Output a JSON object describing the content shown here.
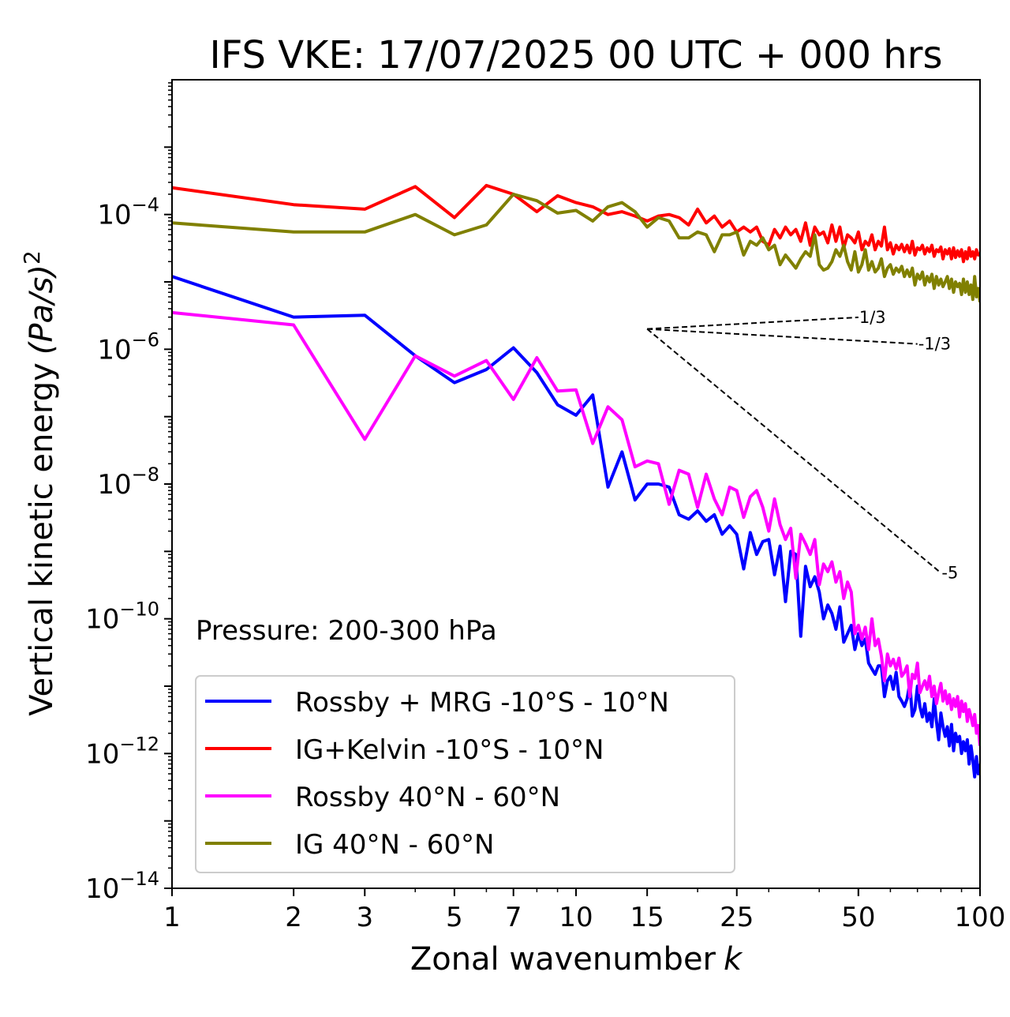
{
  "chart_data": {
    "type": "line",
    "title": "IFS VKE: 17/07/2025 00 UTC + 000 hrs",
    "xlabel": "Zonal wavenumber",
    "xlabel_var": "k",
    "ylabel": "Vertical kinetic energy",
    "ylabel_unit": "(Pa/s)",
    "ylabel_exp": "2",
    "xscale": "log",
    "yscale": "log",
    "xlim": [
      1,
      100
    ],
    "ylim": [
      1e-14,
      0.01
    ],
    "x_ticks": [
      1,
      2,
      3,
      5,
      7,
      10,
      15,
      25,
      50,
      100
    ],
    "x_tick_labels": [
      "1",
      "2",
      "3",
      "5",
      "7",
      "10",
      "15",
      "25",
      "50",
      "100"
    ],
    "y_ticks": [
      -14,
      -12,
      -10,
      -8,
      -6,
      -4
    ],
    "y_tick_labels": [
      "10",
      "10",
      "10",
      "10",
      "10",
      "10"
    ],
    "y_tick_exponents": [
      "−14",
      "−12",
      "−10",
      "−8",
      "−6",
      "−4"
    ],
    "annotation": "Pressure: 200-300 hPa",
    "legend_position": "lower-left",
    "reference_lines": [
      {
        "label": "1/3",
        "slope": 0.3333,
        "x": [
          15,
          50
        ],
        "y": [
          2e-06,
          2.98e-06
        ]
      },
      {
        "label": "-1/3",
        "slope": -0.3333,
        "x": [
          15,
          70
        ],
        "y": [
          2e-06,
          1.2e-06
        ]
      },
      {
        "label": "-5",
        "slope": -5,
        "x": [
          15,
          80
        ],
        "y": [
          2e-06,
          4.8e-10
        ]
      }
    ],
    "series": [
      {
        "name": "Rossby + MRG -10°S - 10°N",
        "color": "#0000ff",
        "x": [
          1,
          2,
          3,
          4,
          5,
          6,
          7,
          8,
          9,
          10,
          11,
          12,
          13,
          14,
          15,
          16,
          17,
          18,
          19,
          20,
          21,
          22,
          23,
          24,
          25,
          26,
          27,
          28,
          29,
          30,
          31,
          32,
          33,
          34,
          35,
          36,
          37,
          38,
          39,
          40,
          41,
          42,
          43,
          44,
          45,
          46,
          47,
          48,
          49,
          50,
          51,
          52,
          53,
          54,
          55,
          56,
          57,
          58,
          59,
          60,
          61,
          62,
          63,
          64,
          65,
          66,
          67,
          68,
          69,
          70,
          71,
          72,
          73,
          74,
          75,
          76,
          77,
          78,
          79,
          80,
          81,
          82,
          83,
          84,
          85,
          86,
          87,
          88,
          89,
          90,
          91,
          92,
          93,
          94,
          95,
          96,
          97,
          98,
          99,
          100
        ],
        "y": [
          1.2e-05,
          3e-06,
          3.2e-06,
          8e-07,
          3.2e-07,
          5e-07,
          1.05e-06,
          4.5e-07,
          1.5e-07,
          1.05e-07,
          2.1e-07,
          9e-09,
          3e-08,
          5.8e-09,
          1e-08,
          1e-08,
          9e-09,
          3.5e-09,
          3e-09,
          4e-09,
          2.8e-09,
          3.5e-09,
          1.8e-09,
          2.4e-09,
          1.8e-09,
          5.5e-10,
          1.9e-09,
          9e-10,
          1.4e-09,
          1.5e-09,
          4.5e-10,
          1.2e-09,
          1.8e-10,
          1e-09,
          9e-10,
          5.5e-11,
          6e-10,
          3e-10,
          4.2e-10,
          2.5e-10,
          1e-10,
          1.6e-10,
          1.2e-10,
          7e-11,
          1.5e-10,
          4.5e-11,
          6e-11,
          8e-11,
          3.5e-11,
          6e-11,
          4e-11,
          5e-11,
          2.2e-11,
          1.8e-11,
          1.5e-11,
          2e-11,
          2e-11,
          7e-12,
          1.2e-11,
          1.4e-11,
          9e-12,
          1.6e-11,
          7e-12,
          6e-12,
          5e-12,
          6.5e-12,
          1.1e-11,
          3.6e-12,
          4.5e-12,
          1e-11,
          5e-12,
          3.5e-12,
          5.5e-12,
          3e-12,
          4e-12,
          2.5e-12,
          6.5e-12,
          3e-12,
          1.6e-12,
          4e-12,
          2.5e-12,
          1.8e-12,
          2.5e-12,
          1.3e-12,
          2.7e-12,
          1.1e-12,
          2e-12,
          1.5e-12,
          1.8e-12,
          1e-12,
          1.5e-12,
          1.1e-12,
          1.6e-12,
          7e-13,
          1.3e-12,
          8e-13,
          4.5e-13,
          9e-13,
          5e-13,
          7e-13
        ]
      },
      {
        "name": "IG+Kelvin -10°S - 10°N",
        "color": "#ff0000",
        "x": [
          1,
          2,
          3,
          4,
          5,
          6,
          7,
          8,
          9,
          10,
          11,
          12,
          13,
          14,
          15,
          16,
          17,
          18,
          19,
          20,
          21,
          22,
          23,
          24,
          25,
          26,
          27,
          28,
          29,
          30,
          31,
          32,
          33,
          34,
          35,
          36,
          37,
          38,
          39,
          40,
          41,
          42,
          43,
          44,
          45,
          46,
          47,
          48,
          49,
          50,
          51,
          52,
          53,
          54,
          55,
          56,
          57,
          58,
          59,
          60,
          61,
          62,
          63,
          64,
          65,
          66,
          67,
          68,
          69,
          70,
          71,
          72,
          73,
          74,
          75,
          76,
          77,
          78,
          79,
          80,
          81,
          82,
          83,
          84,
          85,
          86,
          87,
          88,
          89,
          90,
          91,
          92,
          93,
          94,
          95,
          96,
          97,
          98,
          99,
          100
        ],
        "y": [
          0.00025,
          0.00014,
          0.00012,
          0.00026,
          9e-05,
          0.00027,
          0.0002,
          0.00011,
          0.00019,
          0.00015,
          0.00013,
          0.0001,
          0.00011,
          9.5e-05,
          8e-05,
          9.5e-05,
          0.0001,
          9e-05,
          7e-05,
          0.00012,
          7.5e-05,
          9.5e-05,
          6.5e-05,
          8e-05,
          5.5e-05,
          6.5e-05,
          5.5e-05,
          6.5e-05,
          4e-05,
          3.5e-05,
          6e-05,
          4.5e-05,
          6.5e-05,
          5e-05,
          6e-05,
          4e-05,
          7.5e-05,
          3.5e-05,
          6.5e-05,
          5e-05,
          5.5e-05,
          3.8e-05,
          7e-05,
          4e-05,
          6.5e-05,
          3.2e-05,
          5e-05,
          4.5e-05,
          3.8e-05,
          5.5e-05,
          3e-05,
          4e-05,
          3.5e-05,
          5e-05,
          3e-05,
          4e-05,
          3.4e-05,
          6.5e-05,
          3e-05,
          3.8e-05,
          2.6e-05,
          3.5e-05,
          3e-05,
          3.6e-05,
          2.8e-05,
          3.5e-05,
          2.7e-05,
          4e-05,
          2.5e-05,
          3.2e-05,
          3e-05,
          3.5e-05,
          2.6e-05,
          3.2e-05,
          2.8e-05,
          3.5e-05,
          2.4e-05,
          3e-05,
          2.8e-05,
          3.3e-05,
          2.2e-05,
          3e-05,
          2.6e-05,
          3.1e-05,
          2.2e-05,
          3.2e-05,
          2.3e-05,
          2.9e-05,
          2.4e-05,
          3e-05,
          2e-05,
          2.8e-05,
          2.2e-05,
          3.2e-05,
          2.4e-05,
          2.8e-05,
          2.2e-05,
          3e-05,
          2.5e-05,
          2.6e-05
        ]
      },
      {
        "name": "Rossby 40°N - 60°N",
        "color": "#ff00ff",
        "x": [
          1,
          2,
          3,
          4,
          5,
          6,
          7,
          8,
          9,
          10,
          11,
          12,
          13,
          14,
          15,
          16,
          17,
          18,
          19,
          20,
          21,
          22,
          23,
          24,
          25,
          26,
          27,
          28,
          29,
          30,
          31,
          32,
          33,
          34,
          35,
          36,
          37,
          38,
          39,
          40,
          41,
          42,
          43,
          44,
          45,
          46,
          47,
          48,
          49,
          50,
          51,
          52,
          53,
          54,
          55,
          56,
          57,
          58,
          59,
          60,
          61,
          62,
          63,
          64,
          65,
          66,
          67,
          68,
          69,
          70,
          71,
          72,
          73,
          74,
          75,
          76,
          77,
          78,
          79,
          80,
          81,
          82,
          83,
          84,
          85,
          86,
          87,
          88,
          89,
          90,
          91,
          92,
          93,
          94,
          95,
          96,
          97,
          98,
          99,
          100
        ],
        "y": [
          3.5e-06,
          2.3e-06,
          4.6e-08,
          8e-07,
          4e-07,
          6.8e-07,
          1.8e-07,
          7.5e-07,
          2.4e-07,
          2.5e-07,
          4e-08,
          1.4e-07,
          9e-08,
          1.8e-08,
          2.2e-08,
          2e-08,
          5e-09,
          1.6e-08,
          1.4e-08,
          4.5e-09,
          1.4e-08,
          6e-09,
          3.5e-09,
          9e-09,
          8e-09,
          3.2e-09,
          6.5e-09,
          8e-09,
          4.5e-09,
          2e-09,
          6e-09,
          2.5e-09,
          1.5e-09,
          2.2e-09,
          4e-10,
          1.8e-09,
          1.3e-09,
          9e-10,
          1.5e-09,
          3.2e-10,
          6.5e-10,
          5e-10,
          7e-10,
          3.5e-10,
          5e-10,
          2e-10,
          3.5e-10,
          2.5e-10,
          6e-11,
          8e-11,
          5e-11,
          7.5e-11,
          3.5e-11,
          1e-10,
          4e-11,
          5e-11,
          2.8e-11,
          1.2e-11,
          3e-11,
          2e-11,
          2.5e-11,
          1.8e-11,
          2.6e-11,
          1.4e-11,
          1.6e-11,
          2e-11,
          7e-12,
          1.5e-11,
          1.3e-11,
          2.2e-11,
          8e-12,
          1e-11,
          1.2e-11,
          9e-12,
          1.4e-11,
          7e-12,
          1e-11,
          5.5e-12,
          8e-12,
          1.1e-11,
          6e-12,
          8.5e-12,
          5.5e-12,
          7.5e-12,
          4.5e-12,
          6.5e-12,
          5e-12,
          7e-12,
          3.5e-12,
          6e-12,
          4.2e-12,
          5.5e-12,
          3e-12,
          4.5e-12,
          3.5e-12,
          2.6e-12,
          3.8e-12,
          2e-12,
          2.6e-12,
          1.3e-12
        ]
      },
      {
        "name": "IG 40°N - 60°N",
        "color": "#808000",
        "x": [
          1,
          2,
          3,
          4,
          5,
          6,
          7,
          8,
          9,
          10,
          11,
          12,
          13,
          14,
          15,
          16,
          17,
          18,
          19,
          20,
          21,
          22,
          23,
          24,
          25,
          26,
          27,
          28,
          29,
          30,
          31,
          32,
          33,
          34,
          35,
          36,
          37,
          38,
          39,
          40,
          41,
          42,
          43,
          44,
          45,
          46,
          47,
          48,
          49,
          50,
          51,
          52,
          53,
          54,
          55,
          56,
          57,
          58,
          59,
          60,
          61,
          62,
          63,
          64,
          65,
          66,
          67,
          68,
          69,
          70,
          71,
          72,
          73,
          74,
          75,
          76,
          77,
          78,
          79,
          80,
          81,
          82,
          83,
          84,
          85,
          86,
          87,
          88,
          89,
          90,
          91,
          92,
          93,
          94,
          95,
          96,
          97,
          98,
          99,
          100
        ],
        "y": [
          7.5e-05,
          5.5e-05,
          5.5e-05,
          0.0001,
          5e-05,
          7e-05,
          0.0002,
          0.00016,
          0.000105,
          0.000115,
          8e-05,
          0.00013,
          0.00015,
          0.00011,
          6.5e-05,
          9e-05,
          8e-05,
          4.5e-05,
          4.5e-05,
          5.5e-05,
          5e-05,
          2.8e-05,
          5e-05,
          5e-05,
          5.5e-05,
          2.5e-05,
          4e-05,
          3.5e-05,
          4.5e-05,
          3e-05,
          3.5e-05,
          1.8e-05,
          2.5e-05,
          2e-05,
          1.6e-05,
          2.2e-05,
          2.8e-05,
          2.4e-05,
          5e-05,
          1.8e-05,
          1.5e-05,
          1.6e-05,
          2e-05,
          3e-05,
          2.4e-05,
          3.5e-05,
          2e-05,
          1.5e-05,
          2.8e-05,
          1.4e-05,
          1.8e-05,
          3e-05,
          1.5e-05,
          2e-05,
          1.4e-05,
          1.6e-05,
          2.2e-05,
          1.2e-05,
          1.6e-05,
          1.8e-05,
          1.3e-05,
          1.6e-05,
          1.4e-05,
          1.7e-05,
          1.2e-05,
          1.5e-05,
          1.2e-05,
          1.6e-05,
          9e-06,
          1.3e-05,
          1.1e-05,
          1.4e-05,
          9e-06,
          1.2e-05,
          1e-05,
          1.3e-05,
          8e-06,
          1.2e-05,
          9e-06,
          1.1e-05,
          8.5e-06,
          1e-05,
          1.2e-05,
          8e-06,
          1.1e-05,
          7e-06,
          1e-05,
          8.5e-06,
          9.5e-06,
          6.5e-06,
          1.1e-05,
          7e-06,
          1e-05,
          6.5e-06,
          9e-06,
          5.5e-06,
          1.2e-05,
          6e-06,
          8e-06,
          5e-06
        ]
      }
    ]
  }
}
